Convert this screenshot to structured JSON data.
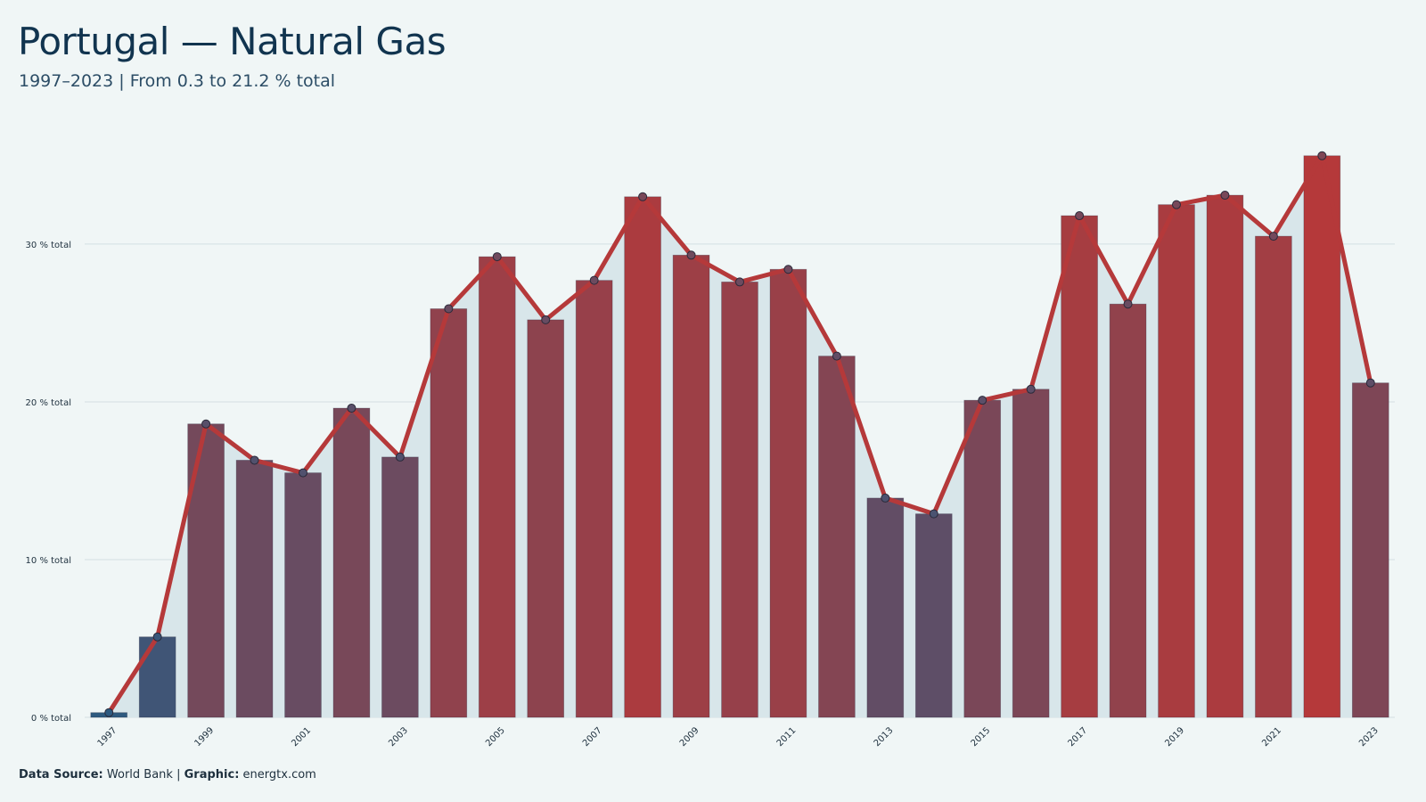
{
  "title": "Portugal — Natural Gas",
  "subtitle": "1997–2023 | From 0.3 to 21.2 % total",
  "footer": {
    "source_label": "Data Source:",
    "source_value": "World Bank",
    "separator": "|",
    "graphic_label": "Graphic:",
    "graphic_value": "energtx.com"
  },
  "colors": {
    "background": "#f0f6f6",
    "line": "#b5393a",
    "area": "#d8e6ea",
    "low": "#2d5a80",
    "high": "#b5393a",
    "grid": "#d3dfe3"
  },
  "chart_data": {
    "type": "bar",
    "x": [
      1997,
      1998,
      1999,
      2000,
      2001,
      2002,
      2003,
      2004,
      2005,
      2006,
      2007,
      2008,
      2009,
      2010,
      2011,
      2012,
      2013,
      2014,
      2015,
      2016,
      2017,
      2018,
      2019,
      2020,
      2021,
      2022,
      2023
    ],
    "values": [
      0.3,
      5.1,
      18.6,
      16.3,
      15.5,
      19.6,
      16.5,
      25.9,
      29.2,
      25.2,
      27.7,
      33.0,
      29.3,
      27.6,
      28.4,
      22.9,
      13.9,
      12.9,
      20.1,
      20.8,
      31.8,
      26.2,
      32.5,
      33.1,
      30.5,
      35.6,
      21.2
    ],
    "xtick_labels": [
      "1997",
      "1999",
      "2001",
      "2003",
      "2005",
      "2007",
      "2009",
      "2011",
      "2013",
      "2015",
      "2017",
      "2019",
      "2021",
      "2023"
    ],
    "ytick_labels": [
      "0 % total",
      "10 % total",
      "20 % total",
      "30 % total"
    ],
    "yticks": [
      0,
      10,
      20,
      30
    ],
    "ylim": [
      0,
      37
    ],
    "grid": true,
    "overlay": "line-with-markers-and-area"
  }
}
